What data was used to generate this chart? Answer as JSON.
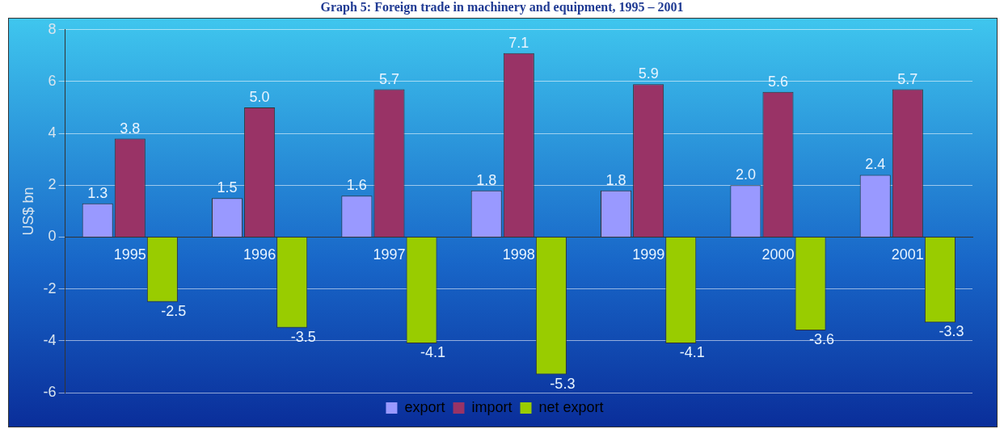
{
  "chart_data": {
    "type": "bar",
    "title": "Graph 5: Foreign trade in machinery and equipment, 1995 – 2001",
    "ylabel": "US$ bn",
    "categories": [
      "1995",
      "1996",
      "1997",
      "1998",
      "1999",
      "2000",
      "2001"
    ],
    "series": [
      {
        "name": "export",
        "color": "#9999ff",
        "values": [
          1.3,
          1.5,
          1.6,
          1.8,
          1.8,
          2.0,
          2.4
        ],
        "value_labels": [
          "1.3",
          "1.5",
          "1.6",
          "1.8",
          "1.8",
          "2.0",
          "2.4"
        ]
      },
      {
        "name": "import",
        "color": "#993366",
        "values": [
          3.8,
          5.0,
          5.7,
          7.1,
          5.9,
          5.6,
          5.7
        ],
        "value_labels": [
          "3.8",
          "5.0",
          "5.7",
          "7.1",
          "5.9",
          "5.6",
          "5.7"
        ]
      },
      {
        "name": "net export",
        "color": "#99cc00",
        "values": [
          -2.5,
          -3.5,
          -4.1,
          -5.3,
          -4.1,
          -3.6,
          -3.3
        ],
        "value_labels": [
          "-2.5",
          "-3.5",
          "-4.1",
          "-5.3",
          "-4.1",
          "-3.6",
          "-3.3"
        ]
      }
    ],
    "ylim": [
      -6,
      8
    ],
    "yticks": [
      -6,
      -4,
      -2,
      0,
      2,
      4,
      6,
      8
    ],
    "grid": "y",
    "legend": "bottom",
    "data_labels": true
  }
}
